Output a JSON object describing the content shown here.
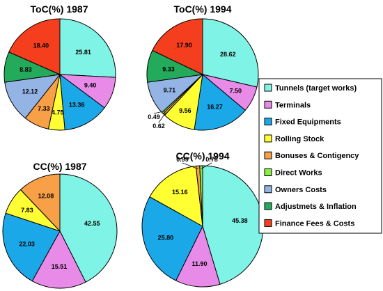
{
  "chart_data": [
    {
      "type": "pie",
      "title": "ToC(%) 1987",
      "series": [
        {
          "values": [
            25.81,
            9.4,
            13.36,
            4.75,
            7.33,
            0,
            12.12,
            8.83,
            18.4
          ]
        }
      ]
    },
    {
      "type": "pie",
      "title": "ToC(%) 1994",
      "series": [
        {
          "values": [
            28.62,
            7.5,
            16.27,
            9.56,
            0.62,
            0.49,
            9.71,
            9.33,
            17.9
          ]
        }
      ]
    },
    {
      "type": "pie",
      "title": "CC(%) 1987",
      "series": [
        {
          "values": [
            42.55,
            15.51,
            22.03,
            7.83,
            12.08,
            0,
            0,
            0,
            0
          ]
        }
      ]
    },
    {
      "type": "pie",
      "title": "CC(%) 1994",
      "series": [
        {
          "values": [
            45.38,
            11.9,
            25.8,
            15.16,
            0.99,
            0.78,
            0,
            0,
            0
          ]
        }
      ]
    }
  ],
  "legend": {
    "placement": "right",
    "entries": [
      {
        "label": "Tunnels (target works)",
        "color": "#7ff3e5"
      },
      {
        "label": "Terminals",
        "color": "#e88ae8"
      },
      {
        "label": "Fixed Equipments",
        "color": "#1ba8e8"
      },
      {
        "label": "Rolling Stock",
        "color": "#ffff33"
      },
      {
        "label": "Bonuses & Contigency",
        "color": "#f7a047"
      },
      {
        "label": "Direct Works",
        "color": "#88ee44"
      },
      {
        "label": "Owners Costs",
        "color": "#94b4e6"
      },
      {
        "label": "Adjustmets & Inflation",
        "color": "#23aa5a"
      },
      {
        "label": "Finance Fees & Costs",
        "color": "#f53e1e"
      }
    ]
  }
}
